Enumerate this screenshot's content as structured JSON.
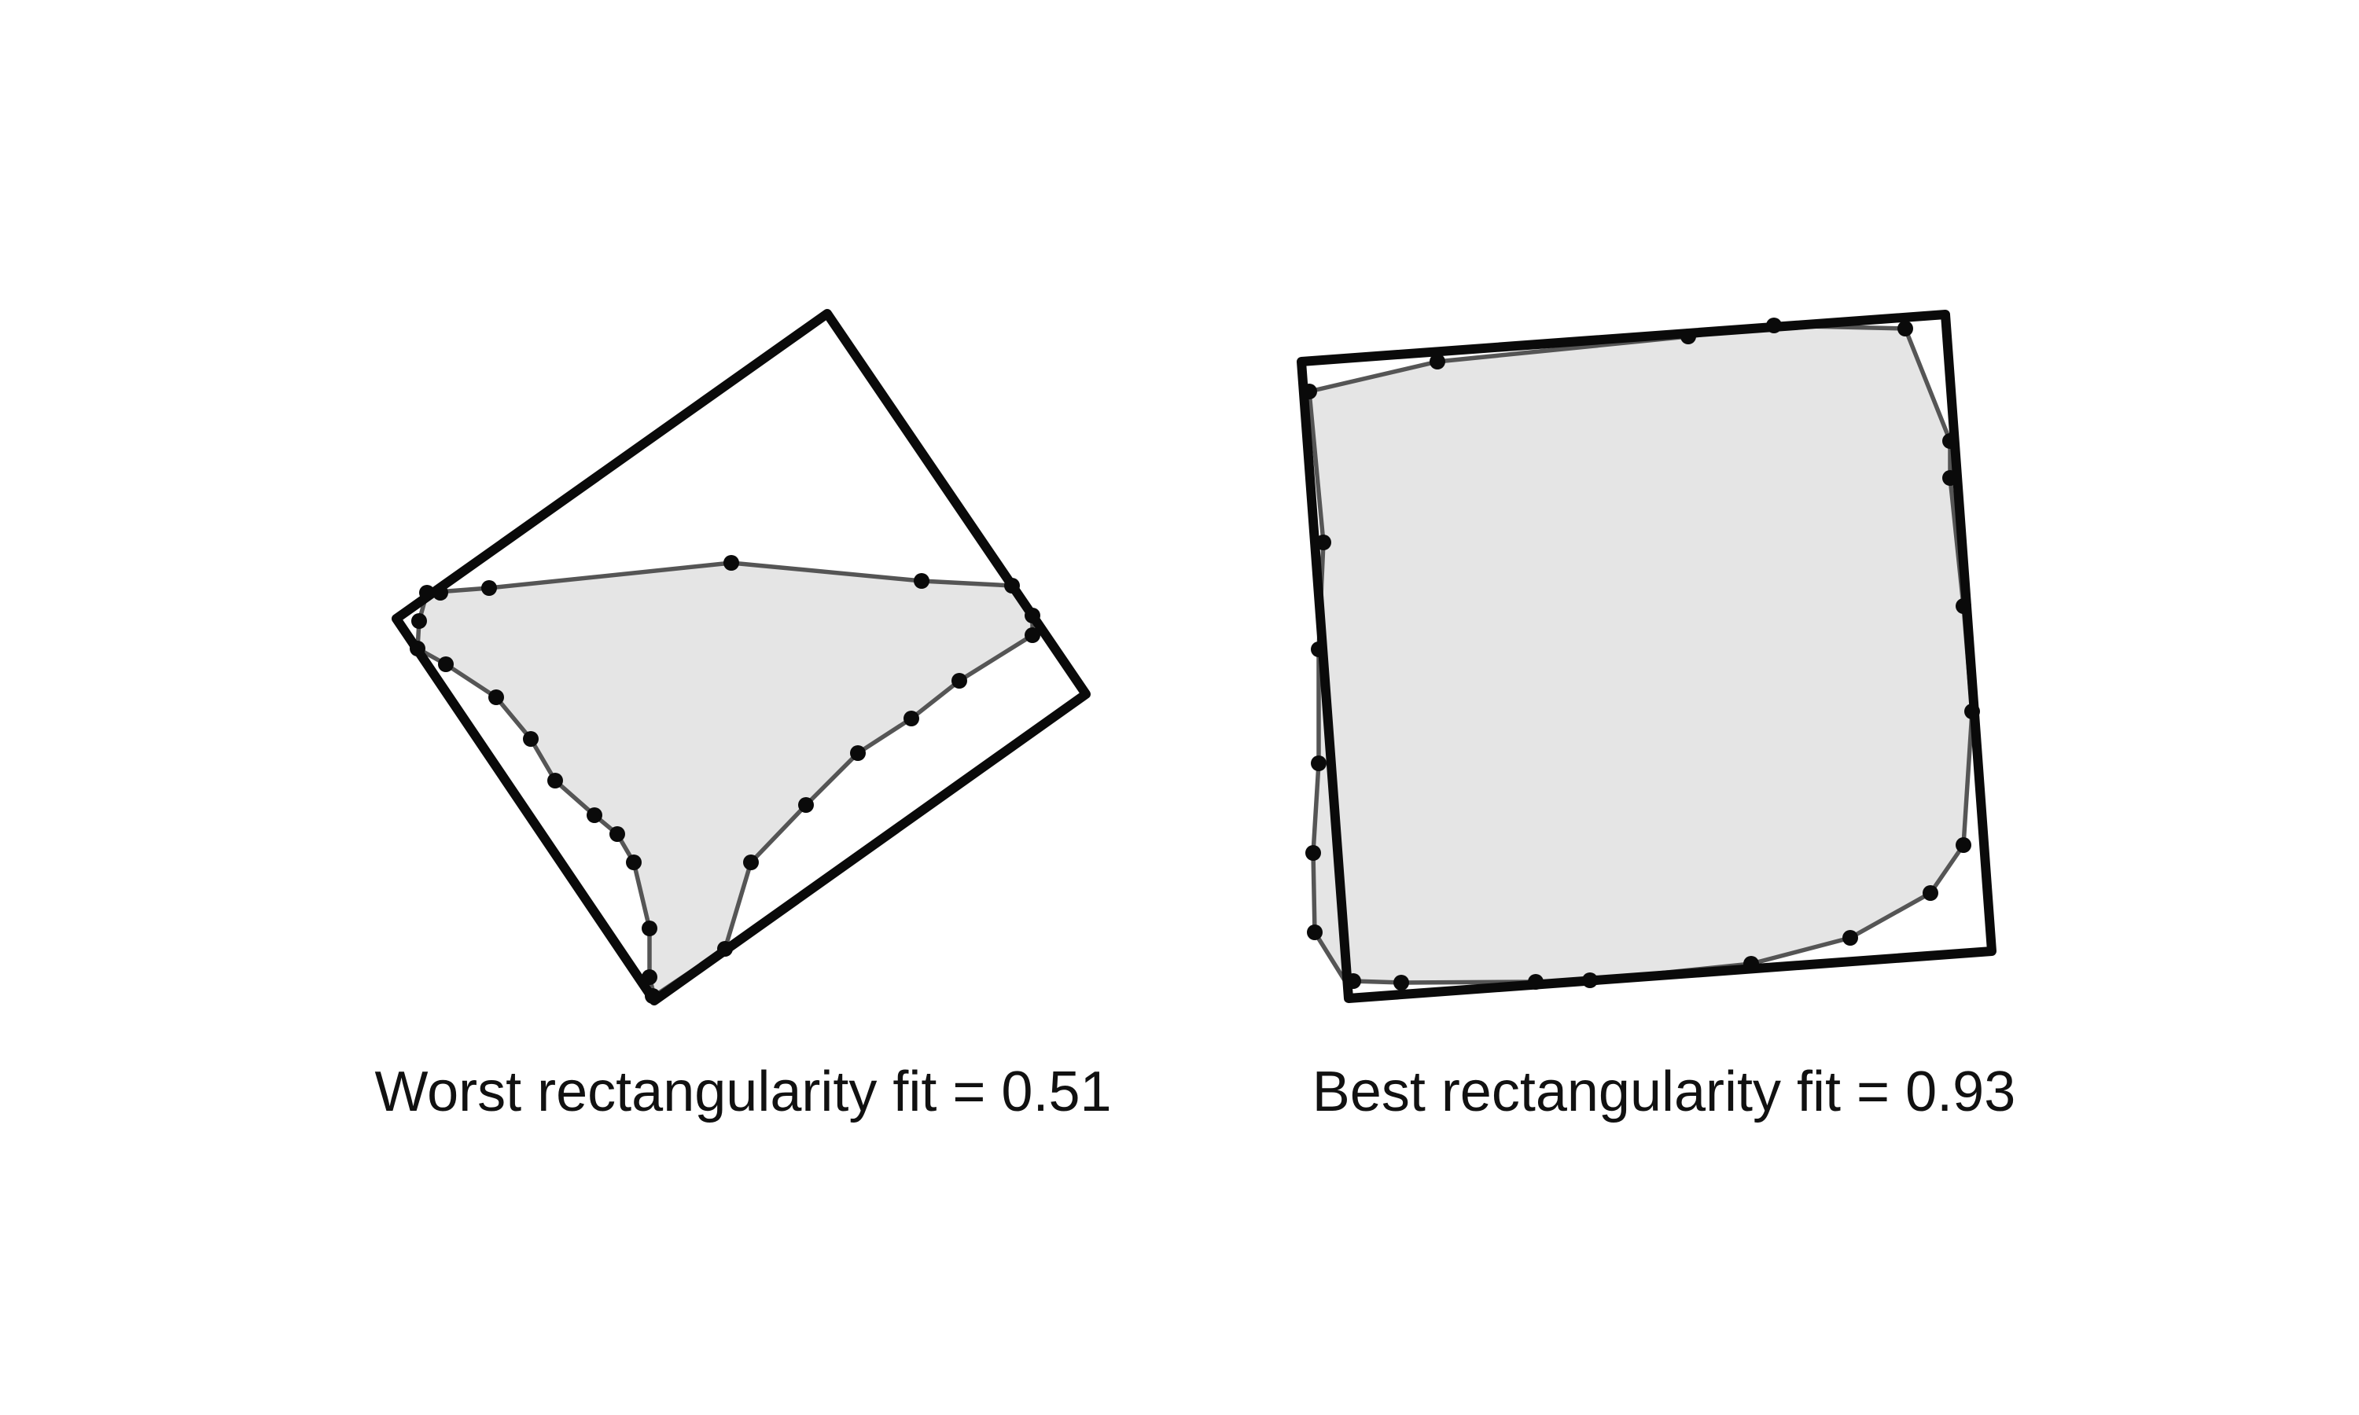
{
  "panels": [
    {
      "id": "worst",
      "caption": "Worst rectangularity fit = 0.51",
      "fit_score": 0.51,
      "fill_color": "#e5e5e5",
      "outline_color": "#0a0a0a"
    },
    {
      "id": "best",
      "caption": "Best rectangularity fit = 0.93",
      "fit_score": 0.93,
      "fill_color": "#e5e5e5",
      "outline_color": "#0a0a0a"
    }
  ]
}
